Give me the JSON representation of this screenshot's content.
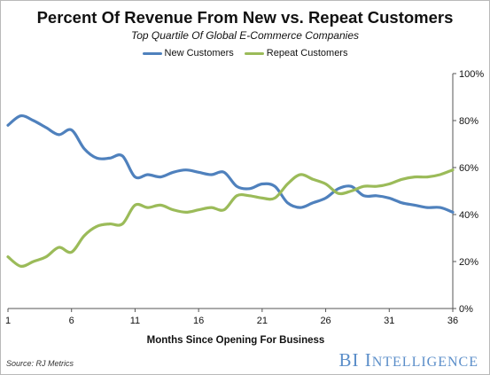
{
  "chart_data": {
    "type": "line",
    "title": "Percent Of Revenue From New vs. Repeat Customers",
    "subtitle": "Top Quartile Of Global E-Commerce Companies",
    "xlabel": "Months Since Opening For Business",
    "ylabel": "",
    "x": [
      1,
      2,
      3,
      4,
      5,
      6,
      7,
      8,
      9,
      10,
      11,
      12,
      13,
      14,
      15,
      16,
      17,
      18,
      19,
      20,
      21,
      22,
      23,
      24,
      25,
      26,
      27,
      28,
      29,
      30,
      31,
      32,
      33,
      34,
      35,
      36
    ],
    "xlim": [
      1,
      36
    ],
    "xticks": [
      1,
      6,
      11,
      16,
      21,
      26,
      31,
      36
    ],
    "xtick_labels": [
      "1",
      "6",
      "11",
      "16",
      "21",
      "26",
      "31",
      "36"
    ],
    "ylim": [
      0,
      100
    ],
    "yticks": [
      0,
      20,
      40,
      60,
      80,
      100
    ],
    "ytick_labels": [
      "0%",
      "20%",
      "40%",
      "60%",
      "80%",
      "100%"
    ],
    "series": [
      {
        "name": "New Customers",
        "color": "#4f81bd",
        "values": [
          78,
          82,
          80,
          77,
          74,
          76,
          68,
          64,
          64,
          65,
          56,
          57,
          56,
          58,
          59,
          58,
          57,
          58,
          52,
          51,
          53,
          52,
          45,
          43,
          45,
          47,
          51,
          52,
          48,
          48,
          47,
          45,
          44,
          43,
          43,
          41
        ]
      },
      {
        "name": "Repeat Customers",
        "color": "#9bbb59",
        "values": [
          22,
          18,
          20,
          22,
          26,
          24,
          31,
          35,
          36,
          36,
          44,
          43,
          44,
          42,
          41,
          42,
          43,
          42,
          48,
          48,
          47,
          47,
          53,
          57,
          55,
          53,
          49,
          50,
          52,
          52,
          53,
          55,
          56,
          56,
          57,
          59
        ]
      }
    ],
    "grid": false,
    "legend_position": "top-center"
  },
  "footer": {
    "source": "Source: RJ Metrics",
    "brand_bi": "BI",
    "brand_i": "I",
    "brand_rest": "NTELLIGENCE"
  }
}
